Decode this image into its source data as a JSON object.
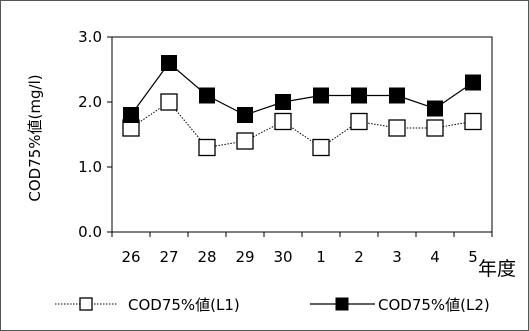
{
  "chart_data": {
    "type": "line",
    "title": "",
    "xlabel": "年度",
    "ylabel": "COD75%値(mg/l)",
    "categories": [
      "26",
      "27",
      "28",
      "29",
      "30",
      "1",
      "2",
      "3",
      "4",
      "5"
    ],
    "ylim": [
      0,
      3
    ],
    "yticks": [
      "0.0",
      "1.0",
      "2.0",
      "3.0"
    ],
    "grid": false,
    "legend": "bottom",
    "series": [
      {
        "name": "COD75%値(L1)",
        "marker": "open-square",
        "line": "dotted",
        "values": [
          1.6,
          2.0,
          1.3,
          1.4,
          1.7,
          1.3,
          1.7,
          1.6,
          1.6,
          1.7
        ]
      },
      {
        "name": "COD75%値(L2)",
        "marker": "filled-square",
        "line": "solid",
        "values": [
          1.8,
          2.6,
          2.1,
          1.8,
          2.0,
          2.1,
          2.1,
          2.1,
          1.9,
          2.3
        ]
      }
    ]
  },
  "colors": {
    "line": "#000000",
    "frame": "#555555",
    "background": "#ffffff"
  }
}
